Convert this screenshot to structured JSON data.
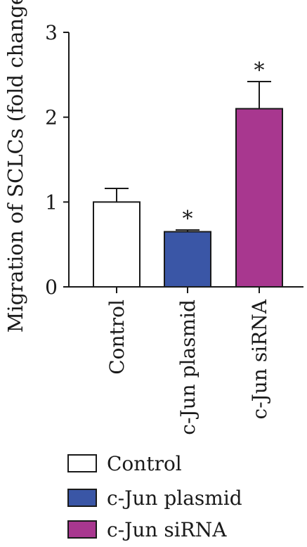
{
  "chart_data": {
    "type": "bar",
    "title": "",
    "xlabel": "",
    "ylabel": "Migration of SCLCs (fold change)",
    "ylim": [
      0,
      3
    ],
    "yticks": [
      "0",
      "1",
      "2",
      "3"
    ],
    "categories": [
      "Control",
      "c-Jun plasmid",
      "c-Jun siRNA"
    ],
    "values": [
      1.0,
      0.65,
      2.1
    ],
    "errors": [
      0.16,
      0.02,
      0.32
    ],
    "significance": [
      "",
      "*",
      "*"
    ],
    "colors": [
      "#ffffff",
      "#3a56a6",
      "#a8378f"
    ],
    "legend": {
      "position": "bottom",
      "entries": [
        "Control",
        "c-Jun plasmid",
        "c-Jun siRNA"
      ]
    },
    "grid": false
  }
}
